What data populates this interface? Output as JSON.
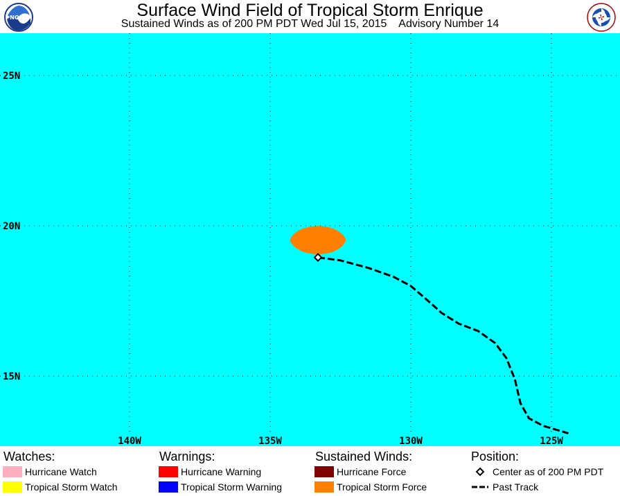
{
  "header": {
    "title": "Surface Wind Field of Tropical Storm Enrique",
    "subtitle": "Sustained Winds as of 200 PM PDT Wed Jul 15, 2015    Advisory Number 14",
    "left_logo_text": "NOAA",
    "right_logo_text": "NATIONAL WEATHER SERVICE"
  },
  "map": {
    "background_color": "#00ffff",
    "lat_labels": [
      {
        "label": "25N",
        "lat": 25
      },
      {
        "label": "20N",
        "lat": 20
      },
      {
        "label": "15N",
        "lat": 15
      }
    ],
    "lon_labels": [
      {
        "label": "140W",
        "lon": -140
      },
      {
        "label": "135W",
        "lon": -135
      },
      {
        "label": "130W",
        "lon": -130
      },
      {
        "label": "125W",
        "lon": -125
      }
    ],
    "storm_center": {
      "lon": -133.3,
      "lat": 18.95
    },
    "tropical_storm_wind_field": {
      "color": "#ff8000",
      "lon_west": -134.3,
      "lon_east": -132.3,
      "lat_north": 20.15,
      "lat_south": 18.9
    },
    "past_track": [
      [
        -133.3,
        18.95
      ],
      [
        -132.5,
        18.85
      ],
      [
        -131.5,
        18.6
      ],
      [
        -130.6,
        18.3
      ],
      [
        -130.0,
        18.0
      ],
      [
        -129.5,
        17.6
      ],
      [
        -128.9,
        17.1
      ],
      [
        -128.3,
        16.75
      ],
      [
        -127.6,
        16.5
      ],
      [
        -127.0,
        16.1
      ],
      [
        -126.6,
        15.6
      ],
      [
        -126.3,
        14.9
      ],
      [
        -126.1,
        14.1
      ],
      [
        -125.8,
        13.6
      ],
      [
        -125.3,
        13.35
      ],
      [
        -124.4,
        13.1
      ]
    ]
  },
  "legend": {
    "watches": {
      "heading": "Watches:",
      "items": [
        {
          "label": "Hurricane Watch",
          "color": "#ffaec0"
        },
        {
          "label": "Tropical Storm Watch",
          "color": "#ffff00"
        }
      ]
    },
    "warnings": {
      "heading": "Warnings:",
      "items": [
        {
          "label": "Hurricane Warning",
          "color": "#ff0000"
        },
        {
          "label": "Tropical Storm Warning",
          "color": "#0000ff"
        }
      ]
    },
    "winds": {
      "heading": "Sustained Winds:",
      "items": [
        {
          "label": "Hurricane Force",
          "color": "#800000"
        },
        {
          "label": "Tropical Storm Force",
          "color": "#ff8000"
        }
      ]
    },
    "position": {
      "heading": "Position:",
      "center_label": "Center as of 200 PM PDT",
      "track_label": "Past Track"
    }
  }
}
